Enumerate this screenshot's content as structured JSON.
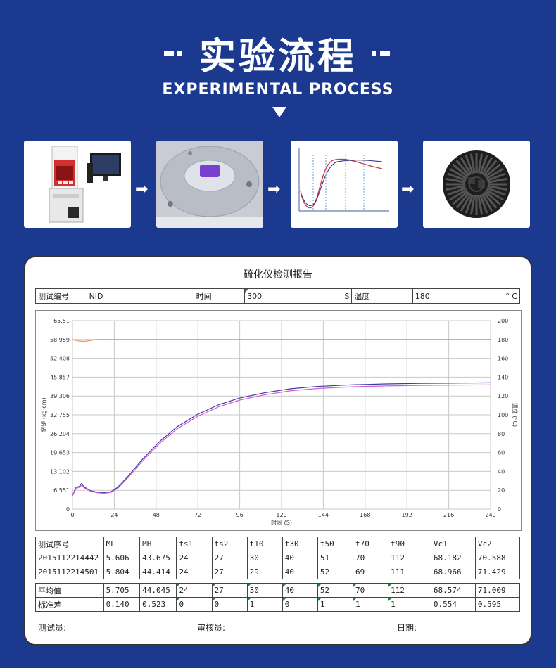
{
  "header": {
    "title": "实验流程",
    "subtitle": "EXPERIMENTAL PROCESS"
  },
  "steps": [
    {
      "name": "rheometer-machine"
    },
    {
      "name": "sample-in-mold"
    },
    {
      "name": "cure-curve-diagram"
    },
    {
      "name": "vulcanized-sample"
    }
  ],
  "report": {
    "title": "硫化仪检测报告",
    "info": {
      "id_label": "测试编号",
      "id_value": "NID",
      "time_label": "时间",
      "time_value": "300",
      "time_unit": "S",
      "temp_label": "温度",
      "temp_value": "180",
      "temp_unit": "° C"
    },
    "columns": [
      "测试序号",
      "ML",
      "MH",
      "ts1",
      "ts2",
      "t10",
      "t30",
      "t50",
      "t70",
      "t90",
      "Vc1",
      "Vc2"
    ],
    "rows": [
      [
        "2015112214442",
        "5.606",
        "43.675",
        "24",
        "27",
        "30",
        "40",
        "51",
        "70",
        "112",
        "68.182",
        "70.588"
      ],
      [
        "2015112214501",
        "5.804",
        "44.414",
        "24",
        "27",
        "29",
        "40",
        "52",
        "69",
        "111",
        "68.966",
        "71.429"
      ]
    ],
    "avg": [
      "平均值",
      "5.705",
      "44.045",
      "24",
      "27",
      "30",
      "40",
      "52",
      "70",
      "112",
      "68.574",
      "71.009"
    ],
    "std": [
      "标准差",
      "0.140",
      "0.523",
      "0",
      "0",
      "1",
      "0",
      "1",
      "1",
      "1",
      "0.554",
      "0.595"
    ],
    "footer": {
      "tester": "测试员:",
      "reviewer": "审核员:",
      "date": "日期:"
    }
  },
  "chart_data": {
    "type": "line",
    "x_label": "时间 (S)",
    "y_label": "扭矩 (kg·cm)",
    "y2_label": "温度 (°C)",
    "x_ticks": [
      "0",
      "24",
      "48",
      "72",
      "96",
      "120",
      "144",
      "168",
      "192",
      "216",
      "240"
    ],
    "y_ticks": [
      "0",
      "6.551",
      "13.102",
      "19.653",
      "26.204",
      "32.755",
      "39.306",
      "45.857",
      "52.408",
      "58.959",
      "65.51"
    ],
    "y2_ticks": [
      "0",
      "20",
      "40",
      "60",
      "80",
      "100",
      "120",
      "140",
      "160",
      "180",
      "200"
    ],
    "xlim": [
      0,
      240
    ],
    "ylim": [
      0,
      65.51
    ],
    "y2lim": [
      0,
      200
    ],
    "grid": true,
    "series": [
      {
        "color": "#3a3aa8",
        "axis": "left",
        "x": [
          0,
          2,
          4,
          5,
          7,
          10,
          14,
          18,
          22,
          26,
          32,
          40,
          50,
          60,
          72,
          84,
          96,
          110,
          125,
          140,
          160,
          180,
          200,
          220,
          240
        ],
        "y": [
          4.8,
          7.6,
          7.9,
          8.8,
          7.6,
          6.5,
          5.9,
          5.7,
          6.0,
          7.6,
          11.5,
          17.2,
          23.5,
          28.6,
          33.0,
          36.3,
          38.6,
          40.4,
          41.8,
          42.6,
          43.2,
          43.5,
          43.7,
          43.8,
          43.9
        ]
      },
      {
        "color": "#d060d0",
        "axis": "left",
        "x": [
          0,
          2,
          4,
          5,
          7,
          10,
          14,
          18,
          22,
          26,
          32,
          40,
          50,
          60,
          72,
          84,
          96,
          110,
          125,
          140,
          160,
          180,
          200,
          220,
          240
        ],
        "y": [
          4.6,
          7.2,
          7.6,
          8.2,
          7.3,
          6.3,
          5.7,
          5.5,
          5.8,
          7.2,
          11.0,
          16.6,
          22.8,
          27.9,
          32.3,
          35.6,
          37.9,
          39.7,
          41.1,
          41.9,
          42.5,
          42.8,
          43.0,
          43.1,
          43.2
        ]
      },
      {
        "color": "#f08a5a",
        "axis": "right",
        "x": [
          0,
          3,
          6,
          9,
          12,
          15,
          18,
          240
        ],
        "y": [
          180,
          178.5,
          178,
          178.5,
          179.5,
          180,
          180,
          180
        ]
      }
    ]
  }
}
